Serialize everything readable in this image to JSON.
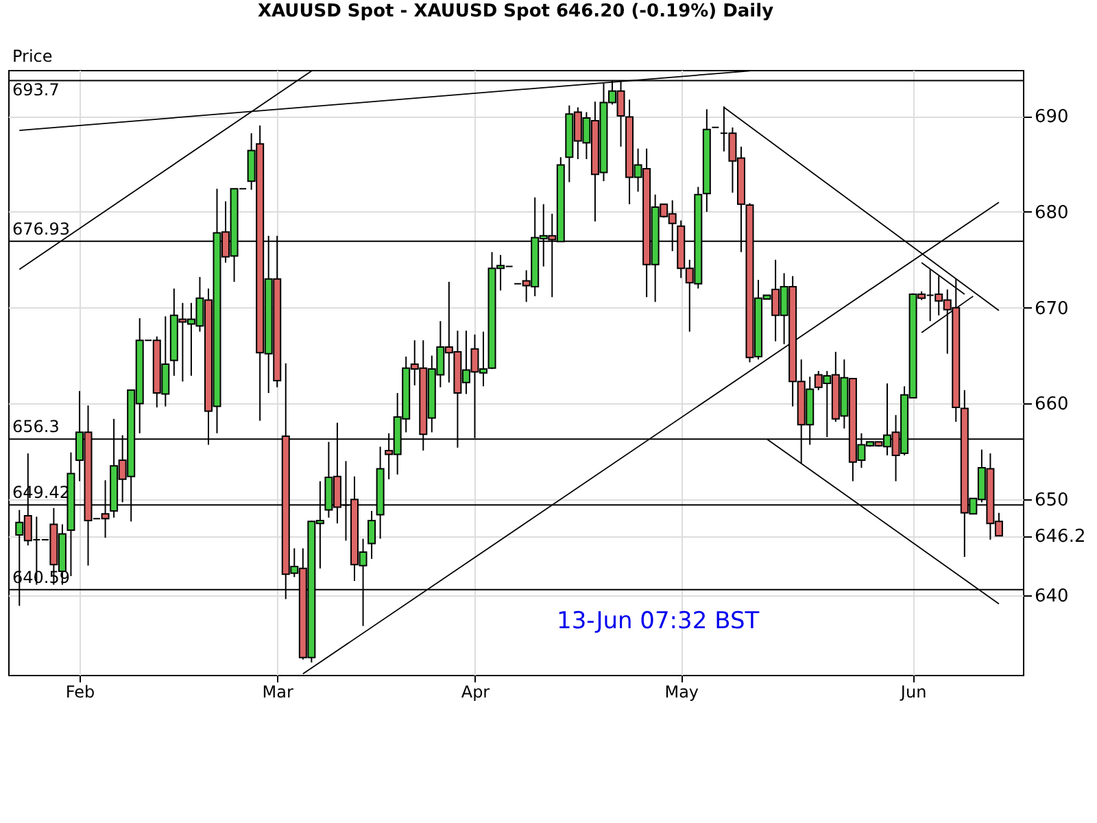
{
  "chart_data": {
    "type": "candlestick",
    "title": "XAUUSD Spot - XAUUSD Spot    646.20 (-0.19%)    Daily",
    "ylabel": "Price",
    "categories": [
      null,
      null,
      null,
      null,
      null,
      null,
      null,
      "Feb",
      null,
      null,
      null,
      null,
      null,
      null,
      null,
      null,
      null,
      null,
      null,
      null,
      null,
      null,
      null,
      null,
      null,
      null,
      null,
      null,
      null,
      null,
      "Mar",
      null,
      null,
      null,
      null,
      null,
      null,
      null,
      null,
      null,
      null,
      null,
      null,
      null,
      null,
      null,
      null,
      null,
      null,
      null,
      null,
      null,
      null,
      "Apr",
      null,
      null,
      null,
      null,
      null,
      null,
      null,
      null,
      null,
      null,
      null,
      null,
      null,
      null,
      null,
      null,
      null,
      null,
      null,
      null,
      null,
      null,
      null,
      "May",
      null,
      null,
      null,
      null,
      null,
      null,
      null,
      null,
      null,
      null,
      null,
      null,
      null,
      null,
      null,
      null,
      null,
      null,
      null,
      null,
      null,
      null,
      null,
      null,
      null,
      null,
      "Jun",
      null,
      null,
      null,
      null,
      null,
      null,
      null,
      null,
      null,
      null
    ],
    "ohlc": [
      [
        646.3,
        648.9,
        638.9,
        647.6
      ],
      [
        648.3,
        654.8,
        645.2,
        645.7
      ],
      [
        645.8,
        648.2,
        641.1,
        645.8
      ],
      [
        645.8,
        645.8,
        645.8,
        645.8
      ],
      [
        647.4,
        649.1,
        641.1,
        643.2
      ],
      [
        642.5,
        647.4,
        641.1,
        646.4
      ],
      [
        646.8,
        654.9,
        642.0,
        652.7
      ],
      [
        654.1,
        661.3,
        651.9,
        657.0
      ],
      [
        657.0,
        659.8,
        643.1,
        647.8
      ],
      [
        648.0,
        648.0,
        648.0,
        648.0
      ],
      [
        648.5,
        652.0,
        646.0,
        648.0
      ],
      [
        648.8,
        658.4,
        648.1,
        653.5
      ],
      [
        654.1,
        656.7,
        649.7,
        652.1
      ],
      [
        652.4,
        661.4,
        647.7,
        661.4
      ],
      [
        660.0,
        668.9,
        656.9,
        666.6
      ],
      [
        666.6,
        666.6,
        666.6,
        666.6
      ],
      [
        666.6,
        667.0,
        659.6,
        661.1
      ],
      [
        661.0,
        669.1,
        659.7,
        664.1
      ],
      [
        664.5,
        672.0,
        662.9,
        669.2
      ],
      [
        668.8,
        670.5,
        662.3,
        668.5
      ],
      [
        668.3,
        670.5,
        662.9,
        668.8
      ],
      [
        668.1,
        673.2,
        667.5,
        671.0
      ],
      [
        670.8,
        672.0,
        655.7,
        659.2
      ],
      [
        659.7,
        682.4,
        656.9,
        677.8
      ],
      [
        677.9,
        681.1,
        674.7,
        675.3
      ],
      [
        675.4,
        682.4,
        672.7,
        682.4
      ],
      [
        682.4,
        682.4,
        682.4,
        682.4
      ],
      [
        683.2,
        688.2,
        682.3,
        686.4
      ],
      [
        687.1,
        689.0,
        658.2,
        665.3
      ],
      [
        665.2,
        677.5,
        661.1,
        673.0
      ],
      [
        673.0,
        677.5,
        661.7,
        662.4
      ],
      [
        656.6,
        664.2,
        639.6,
        642.2
      ],
      [
        642.3,
        644.9,
        641.9,
        643.0
      ],
      [
        642.8,
        644.9,
        633.3,
        633.5
      ],
      [
        633.5,
        647.8,
        633.0,
        647.7
      ],
      [
        647.5,
        651.9,
        642.8,
        647.8
      ],
      [
        648.9,
        656.0,
        648.1,
        652.3
      ],
      [
        652.4,
        658.0,
        647.5,
        649.2
      ],
      [
        649.4,
        654.0,
        645.7,
        649.4
      ],
      [
        650.0,
        652.4,
        641.5,
        643.2
      ],
      [
        643.1,
        645.9,
        636.8,
        644.5
      ],
      [
        645.4,
        648.8,
        643.8,
        647.8
      ],
      [
        648.4,
        655.5,
        645.9,
        653.2
      ],
      [
        655.1,
        656.9,
        652.1,
        654.7
      ],
      [
        654.7,
        661.1,
        652.6,
        658.6
      ],
      [
        658.4,
        664.9,
        657.0,
        663.7
      ],
      [
        664.1,
        666.6,
        661.9,
        663.6
      ],
      [
        663.7,
        666.6,
        655.1,
        656.8
      ],
      [
        658.5,
        665.0,
        657.0,
        663.6
      ],
      [
        663.0,
        668.6,
        661.7,
        665.9
      ],
      [
        665.9,
        672.7,
        662.2,
        665.3
      ],
      [
        665.4,
        667.6,
        655.4,
        661.1
      ],
      [
        662.2,
        667.6,
        661.0,
        663.5
      ],
      [
        665.7,
        667.2,
        656.4,
        663.3
      ],
      [
        663.2,
        667.5,
        661.8,
        663.6
      ],
      [
        663.7,
        675.8,
        663.6,
        674.1
      ],
      [
        674.1,
        675.5,
        671.8,
        674.4
      ],
      [
        674.3,
        674.3,
        674.3,
        674.3
      ],
      [
        672.5,
        672.5,
        672.5,
        672.5
      ],
      [
        672.8,
        673.9,
        670.6,
        672.3
      ],
      [
        672.2,
        681.5,
        671.2,
        677.3
      ],
      [
        677.2,
        680.8,
        674.3,
        677.5
      ],
      [
        677.5,
        679.8,
        671.1,
        677.1
      ],
      [
        676.9,
        685.7,
        676.9,
        684.9
      ],
      [
        685.7,
        691.1,
        683.1,
        690.2
      ],
      [
        690.4,
        690.9,
        685.5,
        687.4
      ],
      [
        687.2,
        690.4,
        685.5,
        689.8
      ],
      [
        689.5,
        691.5,
        679.0,
        683.9
      ],
      [
        684.1,
        693.4,
        683.2,
        691.4
      ],
      [
        691.4,
        693.7,
        691.2,
        692.6
      ],
      [
        692.6,
        693.7,
        686.8,
        690.0
      ],
      [
        689.9,
        691.7,
        680.8,
        683.6
      ],
      [
        683.6,
        686.6,
        682.1,
        684.9
      ],
      [
        684.5,
        686.6,
        671.1,
        674.5
      ],
      [
        674.5,
        681.8,
        670.6,
        680.5
      ],
      [
        680.8,
        680.8,
        679.4,
        679.5
      ],
      [
        679.8,
        681.2,
        675.9,
        678.8
      ],
      [
        678.5,
        679.1,
        673.1,
        674.1
      ],
      [
        674.1,
        675.0,
        667.5,
        672.6
      ],
      [
        672.5,
        682.6,
        672.0,
        681.8
      ],
      [
        681.9,
        690.7,
        680.0,
        688.6
      ],
      [
        688.8,
        688.8,
        688.8,
        688.8
      ],
      [
        688.2,
        691.0,
        686.3,
        688.2
      ],
      [
        688.2,
        688.8,
        682.0,
        685.3
      ],
      [
        685.6,
        686.8,
        675.8,
        680.8
      ],
      [
        680.7,
        680.9,
        664.3,
        664.8
      ],
      [
        664.9,
        672.9,
        664.6,
        671.0
      ],
      [
        670.9,
        671.3,
        670.9,
        671.3
      ],
      [
        671.9,
        675.0,
        666.5,
        669.2
      ],
      [
        669.2,
        673.6,
        666.2,
        672.2
      ],
      [
        672.2,
        673.3,
        659.7,
        662.3
      ],
      [
        662.3,
        664.6,
        653.8,
        657.8
      ],
      [
        657.8,
        662.8,
        655.7,
        661.5
      ],
      [
        663.0,
        663.4,
        661.4,
        661.7
      ],
      [
        662.1,
        663.4,
        656.5,
        662.9
      ],
      [
        663.0,
        665.4,
        658.1,
        658.4
      ],
      [
        658.7,
        664.6,
        657.4,
        662.7
      ],
      [
        662.6,
        662.6,
        651.9,
        653.9
      ],
      [
        654.1,
        656.9,
        653.3,
        655.7
      ],
      [
        655.6,
        656.0,
        655.5,
        656.0
      ],
      [
        656.0,
        656.0,
        655.5,
        655.6
      ],
      [
        655.5,
        662.1,
        654.6,
        656.7
      ],
      [
        657.0,
        658.8,
        651.9,
        654.6
      ],
      [
        654.8,
        661.8,
        654.6,
        660.9
      ],
      [
        660.6,
        671.5,
        660.6,
        671.4
      ],
      [
        671.4,
        671.7,
        670.8,
        671.0
      ],
      [
        671.3,
        674.0,
        668.6,
        671.3
      ],
      [
        671.4,
        673.3,
        669.2,
        670.7
      ],
      [
        670.8,
        671.9,
        665.2,
        669.8
      ],
      [
        670.0,
        673.0,
        658.1,
        659.6
      ],
      [
        659.5,
        661.4,
        644.0,
        648.6
      ],
      [
        648.5,
        650.1,
        648.5,
        650.1
      ],
      [
        650.0,
        655.2,
        649.7,
        653.3
      ],
      [
        653.2,
        654.8,
        645.8,
        647.5
      ],
      [
        647.7,
        648.6,
        646.2,
        646.2
      ]
    ],
    "series": [
      {
        "type": "line",
        "color": "#000000",
        "values": [
          674.0,
          null,
          null,
          null,
          null,
          null,
          null,
          null,
          null,
          null,
          null,
          null,
          null,
          null,
          null,
          null,
          null,
          null,
          null,
          null,
          null,
          null,
          null,
          null,
          null,
          null,
          null,
          null,
          null,
          null,
          null,
          null,
          null,
          null,
          694.7,
          null,
          null,
          null,
          null,
          null,
          null,
          null,
          null,
          null,
          null,
          null,
          null,
          null,
          null,
          null,
          null,
          null,
          null,
          null,
          null,
          null,
          null,
          null,
          null,
          null,
          null,
          null,
          null,
          null,
          null,
          null,
          null,
          null,
          null,
          null,
          null,
          null,
          null,
          null,
          null,
          null,
          null,
          null,
          null,
          null,
          null,
          null,
          null,
          null,
          null,
          null,
          null,
          null,
          null,
          null,
          null,
          null,
          null,
          null,
          null,
          null,
          null,
          null,
          null,
          null,
          null,
          null,
          null,
          null,
          null,
          null,
          null,
          null,
          null,
          null,
          null,
          null,
          null,
          null,
          null
        ]
      },
      {
        "type": "line",
        "color": "#000000",
        "values": [
          688.5,
          null,
          null,
          null,
          null,
          null,
          null,
          null,
          null,
          null,
          null,
          null,
          null,
          null,
          null,
          null,
          null,
          null,
          null,
          null,
          null,
          null,
          null,
          null,
          null,
          null,
          null,
          null,
          null,
          null,
          null,
          null,
          null,
          null,
          null,
          null,
          null,
          null,
          null,
          null,
          null,
          null,
          null,
          null,
          null,
          null,
          null,
          null,
          null,
          null,
          null,
          null,
          null,
          null,
          null,
          null,
          null,
          null,
          null,
          null,
          null,
          null,
          null,
          null,
          null,
          null,
          null,
          null,
          null,
          null,
          null,
          null,
          null,
          null,
          null,
          null,
          null,
          null,
          null,
          null,
          null,
          null,
          null,
          null,
          null,
          694.7,
          null,
          null,
          null,
          null,
          null,
          null,
          null,
          null,
          null,
          null,
          null,
          null,
          null,
          null,
          null,
          null,
          null,
          null,
          null,
          null,
          null,
          null,
          null,
          null,
          null,
          null,
          null,
          null,
          null
        ]
      },
      {
        "type": "line",
        "color": "#000000",
        "values": [
          null,
          null,
          null,
          null,
          null,
          null,
          null,
          null,
          null,
          null,
          null,
          null,
          null,
          null,
          null,
          null,
          null,
          null,
          null,
          null,
          null,
          null,
          null,
          null,
          null,
          null,
          null,
          null,
          null,
          null,
          null,
          null,
          null,
          631.8,
          null,
          null,
          null,
          null,
          null,
          null,
          null,
          null,
          null,
          null,
          null,
          null,
          null,
          null,
          null,
          null,
          null,
          null,
          null,
          null,
          null,
          null,
          null,
          null,
          null,
          null,
          null,
          null,
          null,
          null,
          null,
          null,
          null,
          null,
          null,
          null,
          null,
          null,
          null,
          null,
          null,
          null,
          null,
          null,
          null,
          null,
          null,
          null,
          null,
          null,
          null,
          null,
          null,
          null,
          null,
          null,
          null,
          null,
          null,
          null,
          null,
          null,
          null,
          null,
          null,
          null,
          null,
          null,
          null,
          null,
          null,
          null,
          null,
          null,
          null,
          null,
          null,
          null,
          null,
          null,
          681.0
        ]
      },
      {
        "type": "line",
        "color": "#000000",
        "values": [
          null,
          null,
          null,
          null,
          null,
          null,
          null,
          null,
          null,
          null,
          null,
          null,
          null,
          null,
          null,
          null,
          null,
          null,
          null,
          null,
          null,
          null,
          null,
          null,
          null,
          null,
          null,
          null,
          null,
          null,
          null,
          null,
          null,
          null,
          null,
          null,
          null,
          null,
          null,
          null,
          null,
          null,
          null,
          null,
          null,
          null,
          null,
          null,
          null,
          null,
          null,
          null,
          null,
          null,
          null,
          null,
          null,
          null,
          null,
          null,
          null,
          null,
          null,
          null,
          null,
          null,
          null,
          null,
          null,
          null,
          null,
          null,
          null,
          null,
          null,
          null,
          null,
          null,
          null,
          null,
          null,
          null,
          690.9,
          null,
          null,
          null,
          null,
          null,
          null,
          null,
          null,
          null,
          null,
          null,
          null,
          null,
          null,
          null,
          null,
          null,
          null,
          null,
          null,
          null,
          null,
          null,
          null,
          null,
          null,
          null,
          null,
          null,
          null,
          null,
          669.7
        ]
      },
      {
        "type": "line",
        "color": "#000000",
        "values": [
          null,
          null,
          null,
          null,
          null,
          null,
          null,
          null,
          null,
          null,
          null,
          null,
          null,
          null,
          null,
          null,
          null,
          null,
          null,
          null,
          null,
          null,
          null,
          null,
          null,
          null,
          null,
          null,
          null,
          null,
          null,
          null,
          null,
          null,
          null,
          null,
          null,
          null,
          null,
          null,
          null,
          null,
          null,
          null,
          null,
          null,
          null,
          null,
          null,
          null,
          null,
          null,
          null,
          null,
          null,
          null,
          null,
          null,
          null,
          null,
          null,
          null,
          null,
          null,
          null,
          null,
          null,
          null,
          null,
          null,
          null,
          null,
          null,
          null,
          null,
          null,
          null,
          null,
          null,
          null,
          null,
          null,
          null,
          null,
          null,
          null,
          null,
          656.3,
          null,
          null,
          null,
          null,
          null,
          null,
          null,
          null,
          null,
          null,
          null,
          null,
          null,
          null,
          null,
          null,
          null,
          null,
          null,
          null,
          null,
          null,
          null,
          null,
          null,
          null,
          639.1
        ]
      },
      {
        "type": "line",
        "color": "#000000",
        "values": [
          null,
          null,
          null,
          null,
          null,
          null,
          null,
          null,
          null,
          null,
          null,
          null,
          null,
          null,
          null,
          null,
          null,
          null,
          null,
          null,
          null,
          null,
          null,
          null,
          null,
          null,
          null,
          null,
          null,
          null,
          null,
          null,
          null,
          null,
          null,
          null,
          null,
          null,
          null,
          null,
          null,
          null,
          null,
          null,
          null,
          null,
          null,
          null,
          null,
          null,
          null,
          null,
          null,
          null,
          null,
          null,
          null,
          null,
          null,
          null,
          null,
          null,
          null,
          null,
          null,
          null,
          null,
          null,
          null,
          null,
          null,
          null,
          null,
          null,
          null,
          null,
          null,
          null,
          null,
          null,
          null,
          null,
          null,
          null,
          null,
          null,
          null,
          null,
          null,
          null,
          null,
          null,
          null,
          null,
          null,
          null,
          null,
          null,
          null,
          null,
          null,
          null,
          null,
          null,
          null,
          667.4,
          null,
          null,
          null,
          null,
          null,
          671.2,
          null,
          null,
          null
        ]
      },
      {
        "type": "line",
        "color": "#000000",
        "values": [
          null,
          null,
          null,
          null,
          null,
          null,
          null,
          null,
          null,
          null,
          null,
          null,
          null,
          null,
          null,
          null,
          null,
          null,
          null,
          null,
          null,
          null,
          null,
          null,
          null,
          null,
          null,
          null,
          null,
          null,
          null,
          null,
          null,
          null,
          null,
          null,
          null,
          null,
          null,
          null,
          null,
          null,
          null,
          null,
          null,
          null,
          null,
          null,
          null,
          null,
          null,
          null,
          null,
          null,
          null,
          null,
          null,
          null,
          null,
          null,
          null,
          null,
          null,
          null,
          null,
          null,
          null,
          null,
          null,
          null,
          null,
          null,
          null,
          null,
          null,
          null,
          null,
          null,
          null,
          null,
          null,
          null,
          null,
          null,
          null,
          null,
          null,
          null,
          null,
          null,
          null,
          null,
          null,
          null,
          null,
          null,
          null,
          null,
          null,
          null,
          null,
          null,
          null,
          null,
          null,
          674.7,
          null,
          null,
          null,
          null,
          671.4,
          null,
          null,
          null,
          null
        ]
      }
    ],
    "ylim": [
      631.7,
      694.8
    ],
    "yticks": [
      640,
      {
        "value": 646.2,
        "label": "646.2"
      },
      650,
      660,
      670,
      680,
      690
    ],
    "grid": true,
    "ref_lines": [
      {
        "axis": "y",
        "value": 693.7,
        "label": "693.7",
        "color": "#000000"
      },
      {
        "axis": "y",
        "value": 676.93,
        "label": "676.93",
        "color": "#000000"
      },
      {
        "axis": "y",
        "value": 656.3,
        "label": "656.3",
        "color": "#000000"
      },
      {
        "axis": "y",
        "value": 649.42,
        "label": "649.42",
        "color": "#000000"
      },
      {
        "axis": "y",
        "value": 640.59,
        "label": "640.59",
        "color": "#000000"
      }
    ],
    "annotations": [
      "13-Jun 07:32 BST"
    ]
  }
}
